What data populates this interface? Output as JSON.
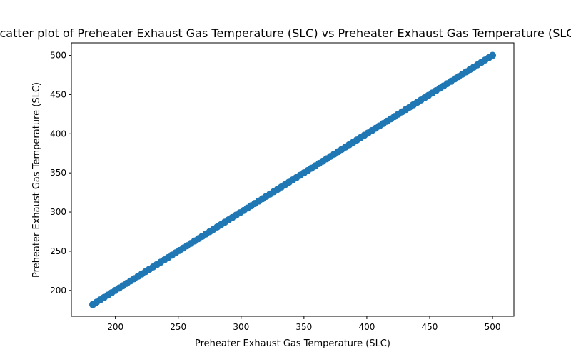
{
  "chart_data": {
    "type": "scatter",
    "title": "Scatter plot of Preheater Exhaust Gas Temperature (SLC) vs Preheater Exhaust Gas Temperature (SLC)",
    "xlabel": "Preheater Exhaust Gas Temperature (SLC)",
    "ylabel": "Preheater Exhaust Gas Temperature (SLC)",
    "xlim": [
      165,
      517
    ],
    "ylim": [
      167,
      516
    ],
    "xticks": [
      200,
      250,
      300,
      350,
      400,
      450,
      500
    ],
    "yticks": [
      200,
      250,
      300,
      350,
      400,
      450,
      500
    ],
    "grid": false,
    "marker_color": "#1f77b4",
    "series": [
      {
        "x": [
          182,
          185,
          188,
          191,
          194,
          197,
          200,
          203,
          206,
          209,
          212,
          215,
          218,
          221,
          224,
          227,
          230,
          233,
          236,
          239,
          242,
          245,
          248,
          251,
          254,
          257,
          260,
          263,
          266,
          269,
          272,
          275,
          278,
          281,
          284,
          287,
          290,
          293,
          296,
          299,
          302,
          305,
          308,
          311,
          314,
          317,
          320,
          323,
          326,
          329,
          332,
          335,
          338,
          341,
          344,
          347,
          350,
          353,
          356,
          359,
          362,
          365,
          368,
          371,
          374,
          377,
          380,
          383,
          386,
          389,
          392,
          395,
          398,
          401,
          404,
          407,
          410,
          413,
          416,
          419,
          422,
          425,
          428,
          431,
          434,
          437,
          440,
          443,
          446,
          449,
          452,
          455,
          458,
          461,
          464,
          467,
          470,
          473,
          476,
          479,
          482,
          485,
          488,
          491,
          494,
          497,
          500
        ],
        "y": [
          182,
          185,
          188,
          191,
          194,
          197,
          200,
          203,
          206,
          209,
          212,
          215,
          218,
          221,
          224,
          227,
          230,
          233,
          236,
          239,
          242,
          245,
          248,
          251,
          254,
          257,
          260,
          263,
          266,
          269,
          272,
          275,
          278,
          281,
          284,
          287,
          290,
          293,
          296,
          299,
          302,
          305,
          308,
          311,
          314,
          317,
          320,
          323,
          326,
          329,
          332,
          335,
          338,
          341,
          344,
          347,
          350,
          353,
          356,
          359,
          362,
          365,
          368,
          371,
          374,
          377,
          380,
          383,
          386,
          389,
          392,
          395,
          398,
          401,
          404,
          407,
          410,
          413,
          416,
          419,
          422,
          425,
          428,
          431,
          434,
          437,
          440,
          443,
          446,
          449,
          452,
          455,
          458,
          461,
          464,
          467,
          470,
          473,
          476,
          479,
          482,
          485,
          488,
          491,
          494,
          497,
          500
        ]
      }
    ]
  }
}
